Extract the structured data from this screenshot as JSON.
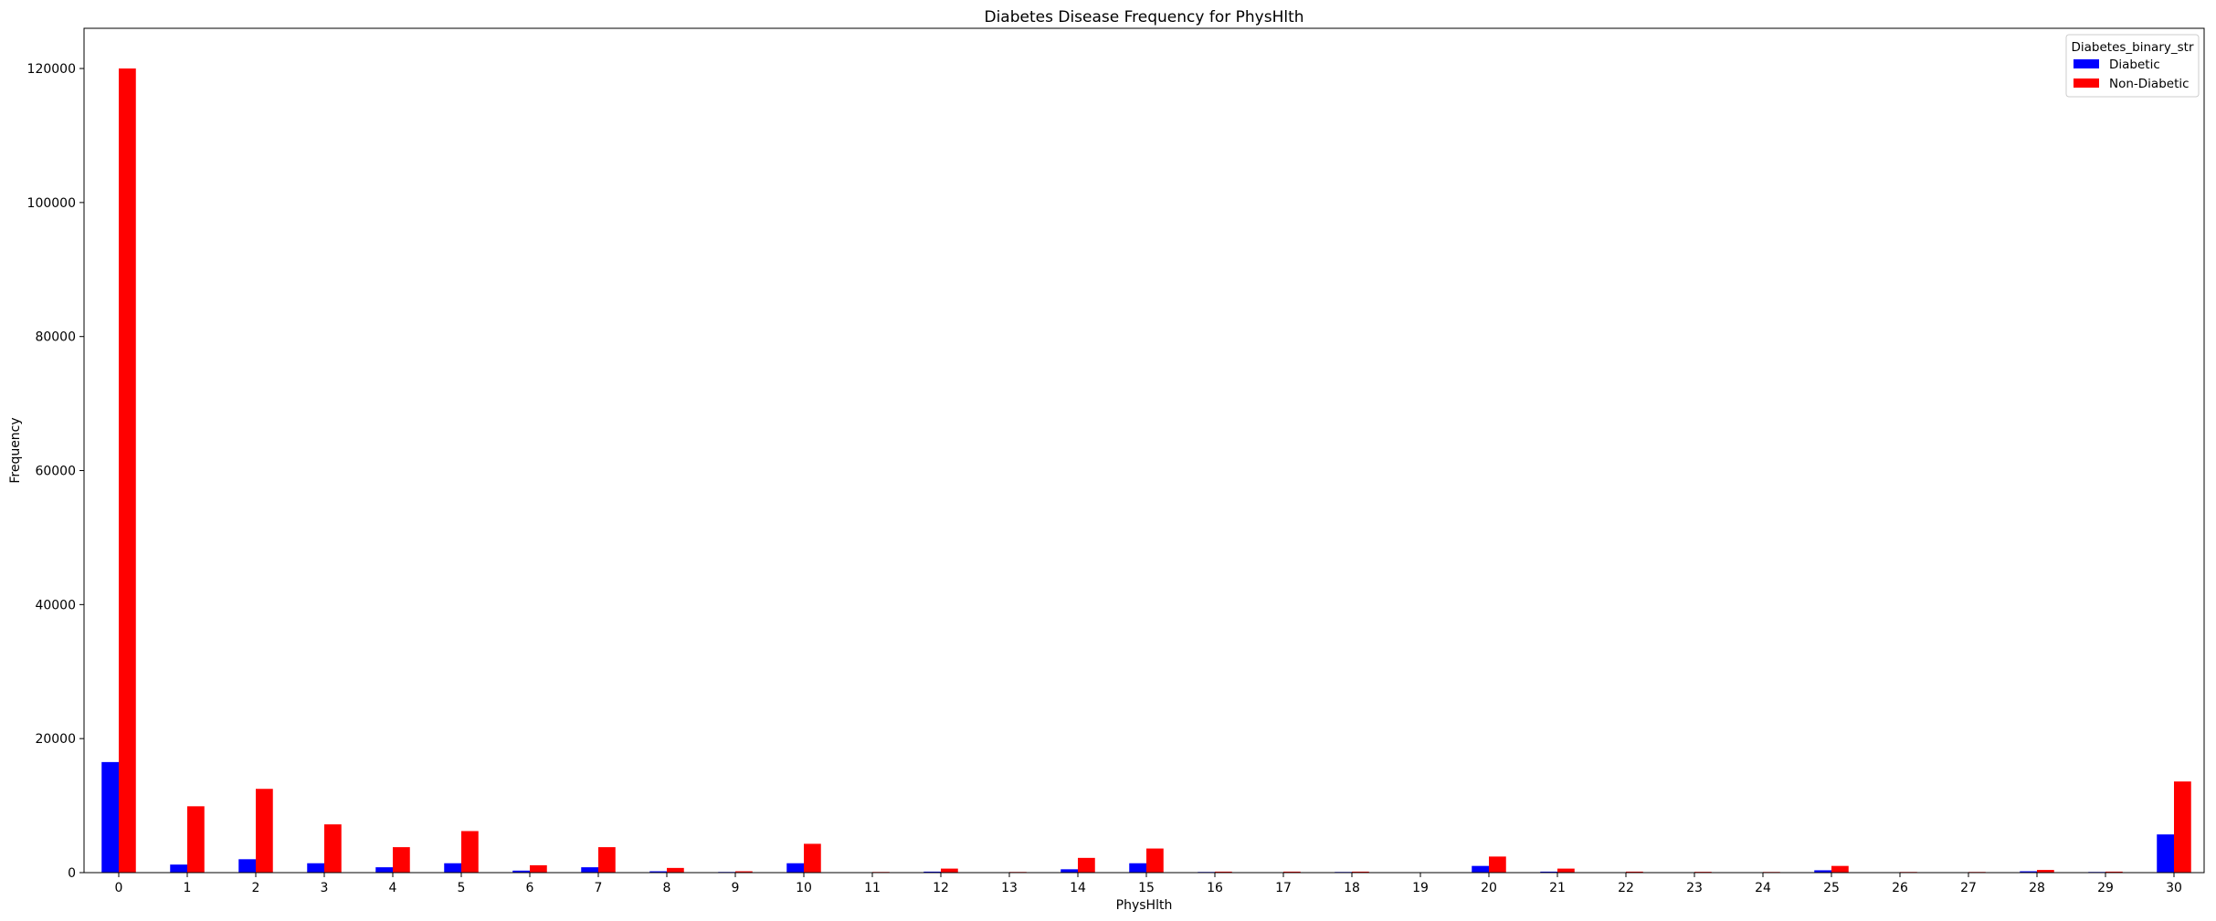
{
  "chart_data": {
    "type": "bar",
    "title": "Diabetes Disease Frequency for PhysHlth",
    "xlabel": "PhysHlth",
    "ylabel": "Frequency",
    "categories": [
      "0",
      "1",
      "2",
      "3",
      "4",
      "5",
      "6",
      "7",
      "8",
      "9",
      "10",
      "11",
      "12",
      "13",
      "14",
      "15",
      "16",
      "17",
      "18",
      "19",
      "20",
      "21",
      "22",
      "23",
      "24",
      "25",
      "26",
      "27",
      "28",
      "29",
      "30"
    ],
    "ylim": [
      0,
      126000
    ],
    "yticks": [
      0,
      20000,
      40000,
      60000,
      80000,
      100000,
      120000
    ],
    "legend": {
      "title": "Diabetes_binary_str",
      "placement": "top-right"
    },
    "series": [
      {
        "name": "Diabetic",
        "color": "#0000ff",
        "values": [
          16500,
          1200,
          2000,
          1400,
          800,
          1400,
          300,
          800,
          200,
          100,
          1400,
          50,
          150,
          40,
          500,
          1400,
          100,
          60,
          100,
          20,
          1000,
          150,
          50,
          40,
          60,
          350,
          40,
          30,
          200,
          100,
          5700
        ]
      },
      {
        "name": "Non-Diabetic",
        "color": "#ff0000",
        "values": [
          120000,
          9900,
          12500,
          7200,
          3800,
          6200,
          1100,
          3800,
          700,
          200,
          4300,
          100,
          600,
          100,
          2200,
          3600,
          150,
          150,
          150,
          30,
          2400,
          600,
          150,
          120,
          100,
          1000,
          100,
          100,
          400,
          150,
          13600
        ]
      }
    ]
  }
}
